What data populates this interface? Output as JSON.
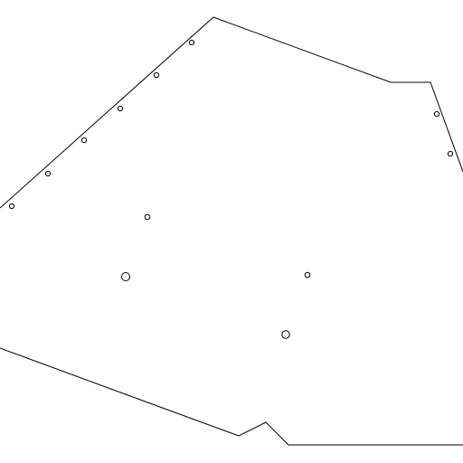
{
  "canvas": {
    "background": "#ffffff"
  },
  "outline": {
    "stroke_color": "#000000"
  },
  "markers": {
    "stroke_color": "#000000",
    "count": 12
  }
}
